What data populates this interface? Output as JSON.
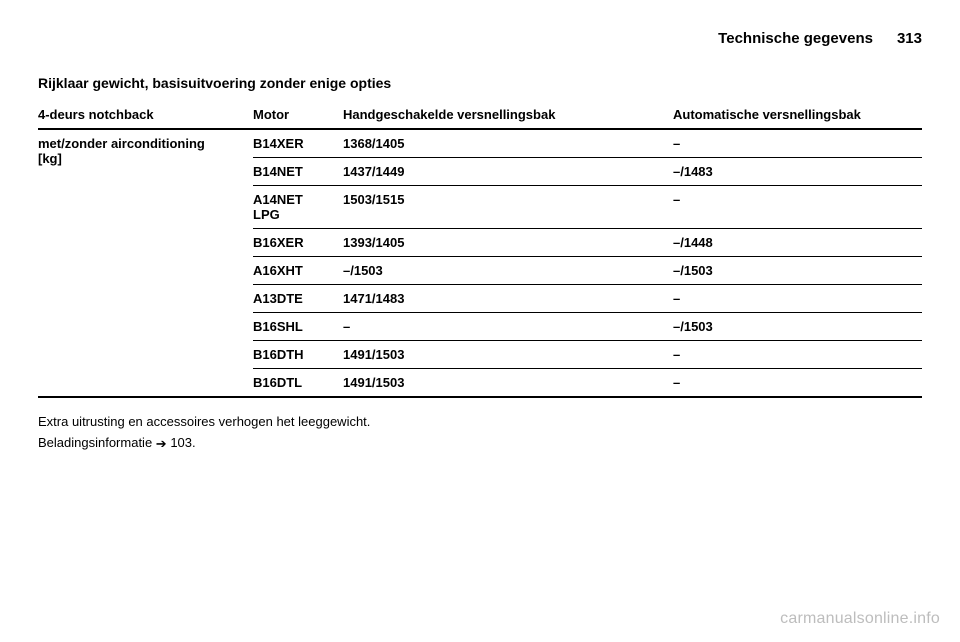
{
  "header": {
    "title": "Technische gegevens",
    "page_number": "313"
  },
  "section_title": "Rijklaar gewicht, basisuitvoering zonder enige opties",
  "table": {
    "columns": [
      {
        "key": "model",
        "label": "4-deurs notchback"
      },
      {
        "key": "motor",
        "label": "Motor"
      },
      {
        "key": "manual",
        "label": "Handgeschakelde versnellingsbak"
      },
      {
        "key": "auto",
        "label": "Automatische versnellingsbak"
      }
    ],
    "subheader": {
      "line1": "met/zonder airconditioning",
      "line2": "[kg]"
    },
    "rows": [
      {
        "motor": "B14XER",
        "manual": "1368/1405",
        "auto": "–"
      },
      {
        "motor": "B14NET",
        "manual": "1437/1449",
        "auto": "–/1483"
      },
      {
        "motor": "A14NET LPG",
        "manual": "1503/1515",
        "auto": "–",
        "motor_line2": "LPG",
        "motor_display": "A14NET"
      },
      {
        "motor": "B16XER",
        "manual": "1393/1405",
        "auto": "–/1448"
      },
      {
        "motor": "A16XHT",
        "manual": "–/1503",
        "auto": "–/1503"
      },
      {
        "motor": "A13DTE",
        "manual": "1471/1483",
        "auto": "–"
      },
      {
        "motor": "B16SHL",
        "manual": "–",
        "auto": "–/1503"
      },
      {
        "motor": "B16DTH",
        "manual": "1491/1503",
        "auto": "–"
      },
      {
        "motor": "B16DTL",
        "manual": "1491/1503",
        "auto": "–"
      }
    ]
  },
  "footnotes": {
    "line1": "Extra uitrusting en accessoires verhogen het leeggewicht.",
    "line2_prefix": "Beladingsinformatie ",
    "line2_ref": "103."
  },
  "watermark": "carmanualsonline.info",
  "glyphs": {
    "arrow": "➔"
  },
  "colors": {
    "text": "#000000",
    "background": "#ffffff",
    "watermark": "#bdbdbd",
    "rule": "#000000"
  }
}
